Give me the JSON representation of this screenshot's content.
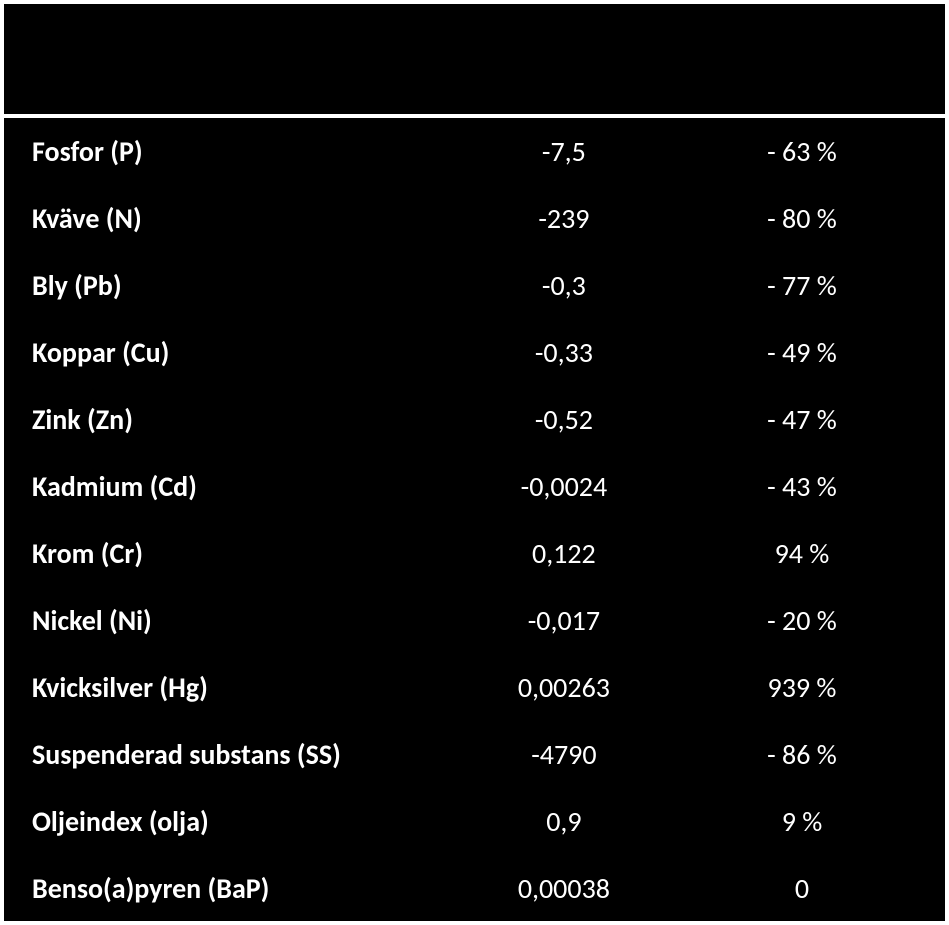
{
  "table": {
    "background_color": "#000000",
    "text_color": "#ffffff",
    "border_color": "#ffffff",
    "font_family": "Calibri",
    "font_size_pt": 21,
    "columns": [
      {
        "key": "name",
        "align": "left",
        "width_pct": 46
      },
      {
        "key": "value",
        "align": "center",
        "width_pct": 27
      },
      {
        "key": "percent",
        "align": "center",
        "width_pct": 27
      }
    ],
    "rows": [
      {
        "name": "Fosfor (P)",
        "value": "-7,5",
        "percent": "- 63 %"
      },
      {
        "name": "Kväve (N)",
        "value": "-239",
        "percent": "- 80 %"
      },
      {
        "name": "Bly (Pb)",
        "value": "-0,3",
        "percent": "- 77 %"
      },
      {
        "name": "Koppar (Cu)",
        "value": "-0,33",
        "percent": "- 49 %"
      },
      {
        "name": "Zink (Zn)",
        "value": "-0,52",
        "percent": "- 47 %"
      },
      {
        "name": "Kadmium (Cd)",
        "value": "-0,0024",
        "percent": "- 43 %"
      },
      {
        "name": "Krom (Cr)",
        "value": "0,122",
        "percent": "94 %"
      },
      {
        "name": "Nickel (Ni)",
        "value": "-0,017",
        "percent": "- 20 %"
      },
      {
        "name": "Kvicksilver (Hg)",
        "value": "0,00263",
        "percent": "939 %"
      },
      {
        "name": "Suspenderad substans (SS)",
        "value": "-4790",
        "percent": "- 86 %"
      },
      {
        "name": "Oljeindex (olja)",
        "value": "0,9",
        "percent": "9 %"
      },
      {
        "name": "Benso(a)pyren (BaP)",
        "value": "0,00038",
        "percent": "0"
      }
    ]
  }
}
